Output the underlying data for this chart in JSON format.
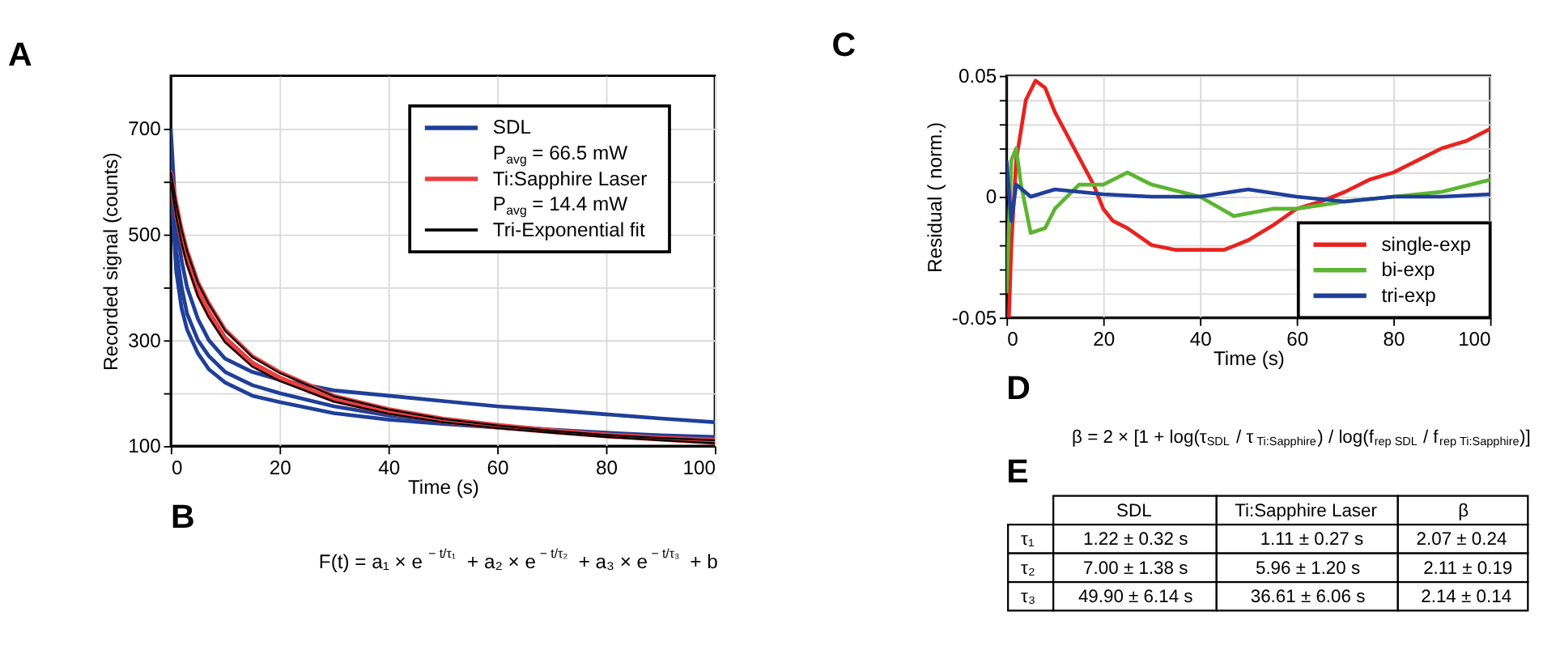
{
  "chart_data": [
    {
      "type": "line",
      "title": "A",
      "xlabel": "Time (s)",
      "ylabel": "Recorded signal (counts)",
      "x": [
        0,
        1,
        2,
        3,
        5,
        7,
        10,
        15,
        20,
        30,
        40,
        50,
        60,
        70,
        80,
        90,
        100
      ],
      "xlim": [
        0,
        100
      ],
      "ylim": [
        100,
        800
      ],
      "xticks": [
        0,
        20,
        40,
        60,
        80,
        100
      ],
      "yticks": [
        100,
        {
          "value": 200,
          "label": null
        },
        300,
        {
          "value": 400,
          "label": null
        },
        500,
        {
          "value": 600,
          "label": null
        },
        700
      ],
      "grid": true,
      "legend": "top right",
      "line_style": "solid",
      "marker": "none",
      "series": [
        {
          "name": "SDL\nP$_{avg}$ = 66.5 mW",
          "color": "#1f3f99",
          "values": [
            700,
            520,
            450,
            400,
            340,
            300,
            265,
            240,
            225,
            205,
            195,
            185,
            175,
            168,
            160,
            152,
            145
          ]
        },
        {
          "color": "#1f3f99",
          "values": [
            640,
            470,
            400,
            350,
            300,
            270,
            240,
            215,
            200,
            175,
            158,
            147,
            138,
            131,
            125,
            120,
            117
          ]
        },
        {
          "color": "#1f3f99",
          "values": [
            600,
            430,
            360,
            320,
            275,
            245,
            220,
            195,
            183,
            162,
            150,
            142,
            135,
            128,
            122,
            118,
            114
          ]
        },
        {
          "name": "Ti:Sapphire Laser\nP$_{avg}$ = 14.4 mW",
          "color": "#e8403f",
          "values": [
            620,
            560,
            510,
            470,
            410,
            370,
            320,
            270,
            240,
            195,
            170,
            152,
            140,
            130,
            122,
            116,
            112
          ]
        },
        {
          "color": "#e8403f",
          "values": [
            610,
            545,
            495,
            455,
            395,
            355,
            305,
            258,
            230,
            188,
            165,
            148,
            137,
            128,
            120,
            114,
            109
          ]
        },
        {
          "color": "#e8403f",
          "values": [
            600,
            535,
            485,
            445,
            385,
            345,
            298,
            252,
            225,
            185,
            162,
            146,
            135,
            126,
            118,
            112,
            106
          ]
        },
        {
          "name": "Tri-Exponential fit",
          "color": "#000000",
          "values": [
            618,
            558,
            508,
            468,
            408,
            368,
            318,
            268,
            238,
            194,
            169,
            151,
            139,
            129,
            121,
            115,
            111
          ]
        },
        {
          "color": "#000000",
          "values": [
            598,
            533,
            483,
            443,
            383,
            343,
            296,
            250,
            223,
            184,
            161,
            145,
            134,
            125,
            117,
            111,
            105
          ]
        }
      ]
    },
    {
      "type": "other",
      "title": "B",
      "annotations": [
        "F(t) = a₁ × e$^{− t/τ₁}$ + a₂ × e$^{− t/τ₂}$ + a₃ × e$^{− t/τ₃}$ + b"
      ]
    },
    {
      "type": "line",
      "title": "C",
      "xlabel": "Time (s)",
      "ylabel": "Residual ( norm.)",
      "xlim": [
        0,
        100
      ],
      "ylim": [
        -0.05,
        0.05
      ],
      "xticks": [
        0,
        20,
        40,
        60,
        80,
        100
      ],
      "yticks": [
        -0.05,
        {
          "value": -0.04,
          "label": null
        },
        {
          "value": -0.03,
          "label": null
        },
        {
          "value": -0.02,
          "label": null
        },
        {
          "value": -0.01,
          "label": null
        },
        0,
        {
          "value": 0.01,
          "label": null
        },
        {
          "value": 0.02,
          "label": null
        },
        {
          "value": 0.03,
          "label": null
        },
        {
          "value": 0.04,
          "label": null
        },
        0.05
      ],
      "grid": true,
      "legend": "bottom right",
      "line_style": "solid",
      "marker": "none",
      "series": [
        {
          "name": "single-exp",
          "color": "#e8231f",
          "x": [
            0.5,
            1,
            2,
            4,
            6,
            8,
            10,
            14,
            18,
            20,
            22,
            25,
            30,
            35,
            40,
            45,
            50,
            55,
            60,
            65,
            70,
            75,
            80,
            85,
            90,
            95,
            100
          ],
          "values": [
            -0.05,
            -0.02,
            0.015,
            0.04,
            0.048,
            0.045,
            0.035,
            0.02,
            0.005,
            -0.005,
            -0.01,
            -0.013,
            -0.02,
            -0.022,
            -0.022,
            -0.022,
            -0.018,
            -0.012,
            -0.005,
            -0.002,
            0.002,
            0.007,
            0.01,
            0.015,
            0.02,
            0.023,
            0.028
          ]
        },
        {
          "name": "bi-exp",
          "color": "#5cb531",
          "x": [
            0,
            1,
            2,
            3,
            5,
            8,
            10,
            15,
            20,
            25,
            30,
            40,
            47,
            55,
            60,
            70,
            80,
            90,
            100
          ],
          "values": [
            -0.04,
            0.015,
            0.02,
            0.005,
            -0.015,
            -0.013,
            -0.005,
            0.005,
            0.005,
            0.01,
            0.005,
            0,
            -0.008,
            -0.005,
            -0.005,
            -0.002,
            0,
            0.002,
            0.007
          ]
        },
        {
          "name": "tri-exp",
          "color": "#1f3f99",
          "x": [
            0,
            1,
            2,
            5,
            10,
            20,
            30,
            40,
            50,
            60,
            70,
            80,
            90,
            100
          ],
          "values": [
            0.015,
            -0.01,
            0.005,
            0,
            0.003,
            0.001,
            0,
            0,
            0.003,
            0,
            -0.002,
            0,
            0,
            0.001
          ]
        }
      ]
    },
    {
      "type": "other",
      "title": "D",
      "annotations": [
        "β = 2 × [1 + log(τ$_{SDL}$ / τ$_{Ti:Sapphire}$) / log(f$_{rep SDL}$ / f$_{rep Ti:Sapphire}$)]"
      ]
    },
    {
      "type": "other",
      "title": "E",
      "categories": [
        "SDL",
        "Ti:Sapphire Laser",
        "β"
      ],
      "y_categories": [
        "τ₁",
        "τ₂",
        "τ₃"
      ],
      "cell_labels": [
        [
          "1.22 ± 0.32 s",
          "1.11 ± 0.27 s",
          "2.07 ± 0.24"
        ],
        [
          "7.00 ± 1.38 s",
          "5.96 ± 1.20 s",
          "2.11 ± 0.19"
        ],
        [
          "49.90 ± 6.14 s",
          "36.61 ± 6.06 s",
          "2.14 ± 0.14"
        ]
      ]
    }
  ]
}
